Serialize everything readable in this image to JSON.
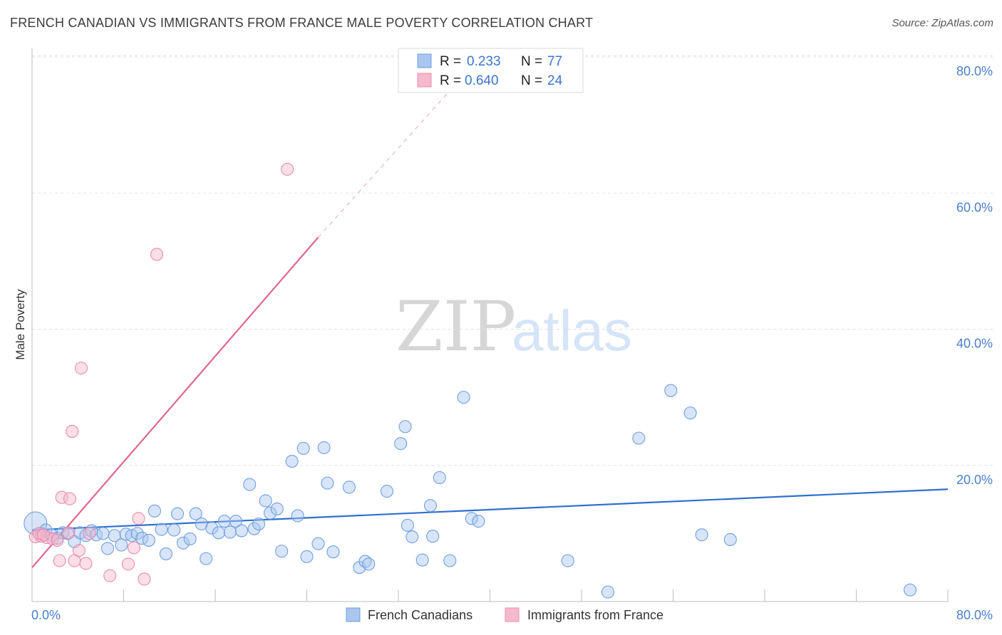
{
  "header": {
    "title": "FRENCH CANADIAN VS IMMIGRANTS FROM FRANCE MALE POVERTY CORRELATION CHART",
    "source": "Source: ZipAtlas.com"
  },
  "watermark": {
    "zip": "ZIP",
    "atlas": "atlas"
  },
  "legend": {
    "rows": [
      {
        "r_label": "R =",
        "r_value": "0.233",
        "n_label": "N =",
        "n_value": "77",
        "color": "#a8c6f0"
      },
      {
        "r_label": "R =",
        "r_value": "0.640",
        "n_label": "N =",
        "n_value": "24",
        "color": "#f7b9cd"
      }
    ]
  },
  "bottom_legend": {
    "items": [
      {
        "label": "French Canadians",
        "color": "#a8c6f0"
      },
      {
        "label": "Immigrants from France",
        "color": "#f7b9cd"
      }
    ]
  },
  "chart_data": {
    "type": "scatter",
    "title": "FRENCH CANADIAN VS IMMIGRANTS FROM FRANCE MALE POVERTY CORRELATION CHART",
    "xlabel": "",
    "ylabel": "Male Poverty",
    "xlim": [
      0,
      80
    ],
    "ylim": [
      0,
      80
    ],
    "x_tick_labels": [
      "0.0%",
      "80.0%"
    ],
    "y_tick_labels": [
      {
        "value": 20,
        "label": "20.0%"
      },
      {
        "value": 40,
        "label": "40.0%"
      },
      {
        "value": 60,
        "label": "60.0%"
      },
      {
        "value": 80,
        "label": "80.0%"
      }
    ],
    "grid": true,
    "series": [
      {
        "name": "French Canadians",
        "color": "#a8c6f0",
        "stroke": "#6f9fe0",
        "trend": {
          "x0": 0,
          "y0": 10.5,
          "x1": 80,
          "y1": 16.5,
          "color": "#2f6fd0"
        },
        "points": [
          [
            0.3,
            11.5
          ],
          [
            0.8,
            10.0
          ],
          [
            1.2,
            10.5
          ],
          [
            1.7,
            9.8
          ],
          [
            2.2,
            9.3
          ],
          [
            2.7,
            10.1
          ],
          [
            3.1,
            10.0
          ],
          [
            3.7,
            8.8
          ],
          [
            4.2,
            10.1
          ],
          [
            4.7,
            9.7
          ],
          [
            5.2,
            10.4
          ],
          [
            5.6,
            9.8
          ],
          [
            6.2,
            10.0
          ],
          [
            6.6,
            7.8
          ],
          [
            7.2,
            9.7
          ],
          [
            7.8,
            8.3
          ],
          [
            8.2,
            9.9
          ],
          [
            8.7,
            9.7
          ],
          [
            9.2,
            10.0
          ],
          [
            9.6,
            9.3
          ],
          [
            10.2,
            9.0
          ],
          [
            10.7,
            13.3
          ],
          [
            11.3,
            10.6
          ],
          [
            11.7,
            7.0
          ],
          [
            12.4,
            10.5
          ],
          [
            12.7,
            12.9
          ],
          [
            13.2,
            8.6
          ],
          [
            13.8,
            9.2
          ],
          [
            14.3,
            12.9
          ],
          [
            14.8,
            11.4
          ],
          [
            15.2,
            6.3
          ],
          [
            15.7,
            10.8
          ],
          [
            16.3,
            10.1
          ],
          [
            16.8,
            11.8
          ],
          [
            17.3,
            10.2
          ],
          [
            17.8,
            11.8
          ],
          [
            18.3,
            10.4
          ],
          [
            19.0,
            17.2
          ],
          [
            19.4,
            10.7
          ],
          [
            19.8,
            11.4
          ],
          [
            20.4,
            14.8
          ],
          [
            20.8,
            13.0
          ],
          [
            21.4,
            13.6
          ],
          [
            21.8,
            7.4
          ],
          [
            22.7,
            20.6
          ],
          [
            23.2,
            12.6
          ],
          [
            23.7,
            22.5
          ],
          [
            24.0,
            6.6
          ],
          [
            25.0,
            8.5
          ],
          [
            25.5,
            22.6
          ],
          [
            25.8,
            17.4
          ],
          [
            26.3,
            7.3
          ],
          [
            27.7,
            16.8
          ],
          [
            28.6,
            5.0
          ],
          [
            29.1,
            5.9
          ],
          [
            29.4,
            5.5
          ],
          [
            31.0,
            16.2
          ],
          [
            32.2,
            23.2
          ],
          [
            32.6,
            25.7
          ],
          [
            32.8,
            11.2
          ],
          [
            33.2,
            9.5
          ],
          [
            34.1,
            6.1
          ],
          [
            35.0,
            9.6
          ],
          [
            34.8,
            14.1
          ],
          [
            35.6,
            18.2
          ],
          [
            36.5,
            6.0
          ],
          [
            37.7,
            30.0
          ],
          [
            38.4,
            12.2
          ],
          [
            39.0,
            11.8
          ],
          [
            46.8,
            6.0
          ],
          [
            50.3,
            1.4
          ],
          [
            53.0,
            24.0
          ],
          [
            55.8,
            31.0
          ],
          [
            57.5,
            27.7
          ],
          [
            58.5,
            9.8
          ],
          [
            61.0,
            9.1
          ],
          [
            76.7,
            1.7
          ]
        ]
      },
      {
        "name": "Immigrants from France",
        "color": "#f7b9cd",
        "stroke": "#e98cab",
        "trend": {
          "x0": 0,
          "y0": 5.0,
          "x1": 25.0,
          "y1": 53.5,
          "color": "#e06690"
        },
        "trend_dash": {
          "x0": 25.0,
          "y0": 53.5,
          "x1": 37.0,
          "y1": 76.0
        },
        "points": [
          [
            0.3,
            9.5
          ],
          [
            0.8,
            9.6
          ],
          [
            1.3,
            9.4
          ],
          [
            1.8,
            9.2
          ],
          [
            2.2,
            9.0
          ],
          [
            2.4,
            6.0
          ],
          [
            2.6,
            15.3
          ],
          [
            3.2,
            10.1
          ],
          [
            3.3,
            15.1
          ],
          [
            3.5,
            25.0
          ],
          [
            3.7,
            6.0
          ],
          [
            4.1,
            7.5
          ],
          [
            4.3,
            34.3
          ],
          [
            4.7,
            5.6
          ],
          [
            5.0,
            10.0
          ],
          [
            6.8,
            3.8
          ],
          [
            8.4,
            5.5
          ],
          [
            8.9,
            7.9
          ],
          [
            9.3,
            12.2
          ],
          [
            9.8,
            3.3
          ],
          [
            10.9,
            51.0
          ],
          [
            22.3,
            63.5
          ],
          [
            0.6,
            10.0
          ],
          [
            1.0,
            9.8
          ]
        ]
      }
    ]
  }
}
